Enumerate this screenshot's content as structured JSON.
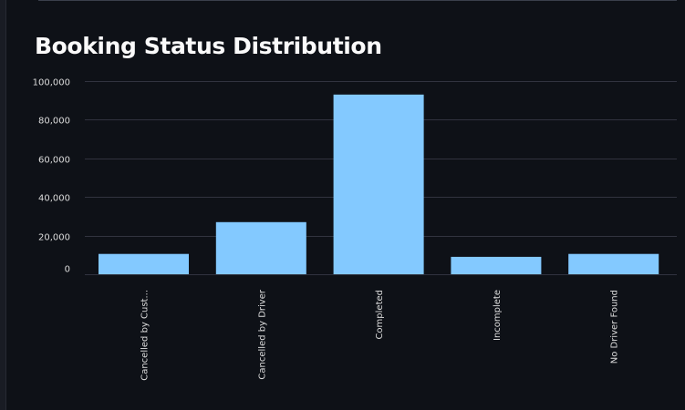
{
  "chart_data": {
    "type": "bar",
    "title": "Booking Status Distribution",
    "categories": [
      "Cancelled by Cust...",
      "Cancelled by Driver",
      "Completed",
      "Incomplete",
      "No Driver Found"
    ],
    "values": [
      10500,
      27000,
      93000,
      9000,
      10500
    ],
    "ylim": [
      0,
      100000
    ],
    "yticks": [
      0,
      20000,
      40000,
      60000,
      80000,
      100000
    ],
    "ytick_labels": [
      "0",
      "20,000",
      "40,000",
      "60,000",
      "80,000",
      "100,000"
    ],
    "grid": true,
    "bar_color": "#83c9ff",
    "gridline_color": "#31333f"
  }
}
